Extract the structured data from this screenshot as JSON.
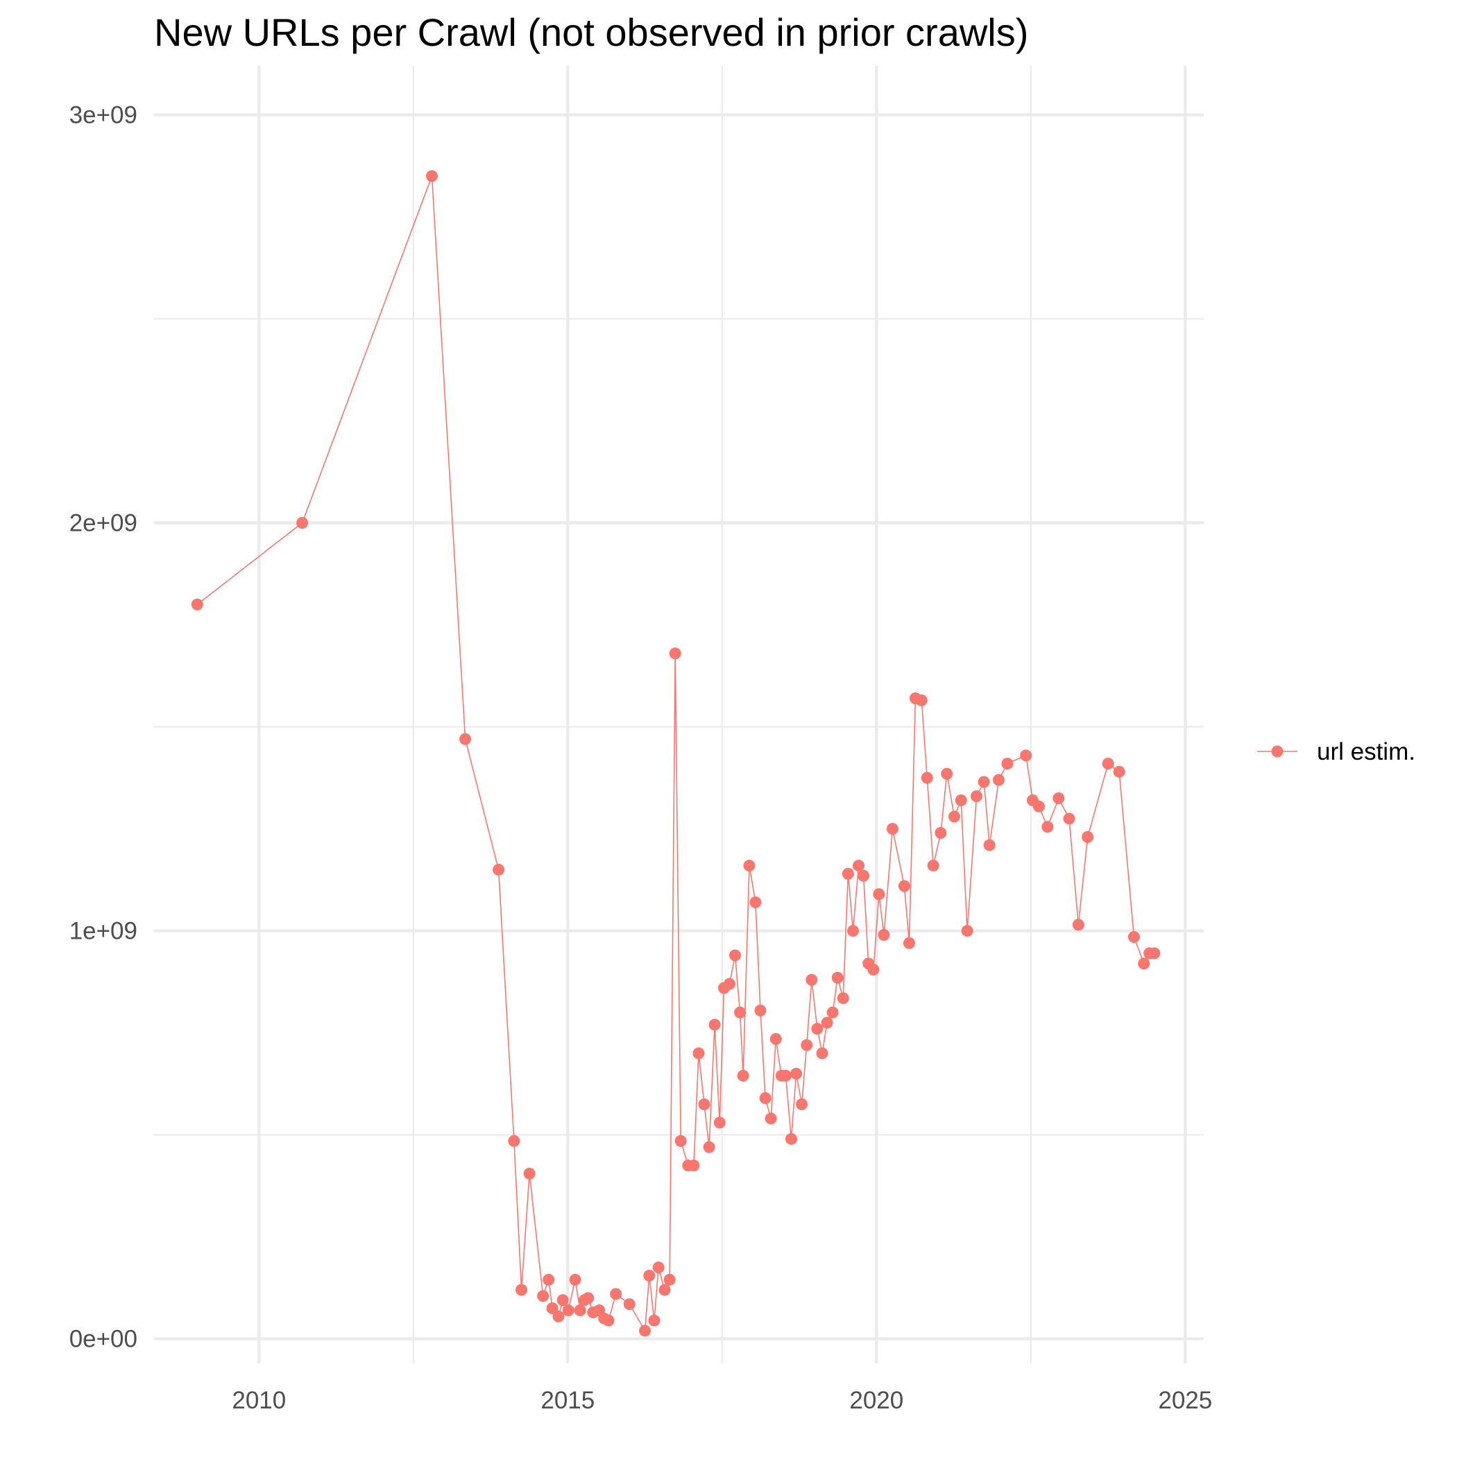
{
  "chart_data": {
    "type": "line",
    "title": "New URLs per Crawl (not observed in prior crawls)",
    "xlabel": "",
    "ylabel": "",
    "xlim": [
      2008.3,
      2025.3
    ],
    "ylim": [
      -60000000,
      3000000000
    ],
    "x_ticks": [
      2010,
      2015,
      2020,
      2025
    ],
    "x_tick_labels": [
      "2010",
      "2015",
      "2020",
      "2025"
    ],
    "y_ticks": [
      0,
      1000000000,
      2000000000,
      3000000000
    ],
    "y_tick_labels": [
      "0e+00",
      "1e+09",
      "2e+09",
      "3e+09"
    ],
    "grid": true,
    "legend_position": "right",
    "series": [
      {
        "name": "url estim.",
        "color": "#F8766D",
        "x": [
          2009.0,
          2010.7,
          2012.8,
          2013.34,
          2013.88,
          2014.13,
          2014.25,
          2014.38,
          2014.6,
          2014.69,
          2014.75,
          2014.85,
          2014.92,
          2015.01,
          2015.12,
          2015.2,
          2015.27,
          2015.33,
          2015.41,
          2015.51,
          2015.59,
          2015.66,
          2015.78,
          2016.0,
          2016.25,
          2016.32,
          2016.4,
          2016.47,
          2016.57,
          2016.65,
          2016.74,
          2016.83,
          2016.95,
          2017.04,
          2017.12,
          2017.21,
          2017.29,
          2017.38,
          2017.46,
          2017.53,
          2017.62,
          2017.71,
          2017.79,
          2017.84,
          2017.94,
          2018.04,
          2018.12,
          2018.2,
          2018.29,
          2018.37,
          2018.46,
          2018.53,
          2018.62,
          2018.7,
          2018.79,
          2018.87,
          2018.95,
          2019.04,
          2019.12,
          2019.2,
          2019.29,
          2019.37,
          2019.46,
          2019.54,
          2019.62,
          2019.71,
          2019.79,
          2019.87,
          2019.95,
          2020.04,
          2020.12,
          2020.26,
          2020.45,
          2020.53,
          2020.63,
          2020.73,
          2020.82,
          2020.92,
          2021.04,
          2021.14,
          2021.26,
          2021.37,
          2021.47,
          2021.62,
          2021.74,
          2021.83,
          2021.98,
          2022.12,
          2022.42,
          2022.53,
          2022.63,
          2022.77,
          2022.95,
          2023.12,
          2023.27,
          2023.42,
          2023.75,
          2023.93,
          2024.17,
          2024.33,
          2024.42,
          2024.5
        ],
        "values": [
          1800000000,
          2000000000,
          2850000000,
          1470000000,
          1150000000,
          485000000,
          120000000,
          405000000,
          105000000,
          145000000,
          75000000,
          55000000,
          95000000,
          70000000,
          145000000,
          70000000,
          95000000,
          100000000,
          65000000,
          70000000,
          50000000,
          45000000,
          110000000,
          85000000,
          20000000,
          155000000,
          45000000,
          175000000,
          120000000,
          145000000,
          1680000000,
          485000000,
          425000000,
          425000000,
          700000000,
          575000000,
          470000000,
          770000000,
          530000000,
          860000000,
          870000000,
          940000000,
          800000000,
          645000000,
          1160000000,
          1070000000,
          805000000,
          590000000,
          540000000,
          735000000,
          645000000,
          645000000,
          490000000,
          650000000,
          575000000,
          720000000,
          880000000,
          760000000,
          700000000,
          775000000,
          800000000,
          885000000,
          835000000,
          1140000000,
          1000000000,
          1160000000,
          1135000000,
          920000000,
          905000000,
          1090000000,
          990000000,
          1250000000,
          1110000000,
          970000000,
          1570000000,
          1565000000,
          1375000000,
          1160000000,
          1240000000,
          1385000000,
          1280000000,
          1320000000,
          1000000000,
          1330000000,
          1365000000,
          1210000000,
          1370000000,
          1410000000,
          1430000000,
          1320000000,
          1305000000,
          1255000000,
          1325000000,
          1275000000,
          1015000000,
          1230000000,
          1410000000,
          1390000000,
          985000000,
          920000000,
          945000000,
          945000000
        ]
      }
    ]
  }
}
